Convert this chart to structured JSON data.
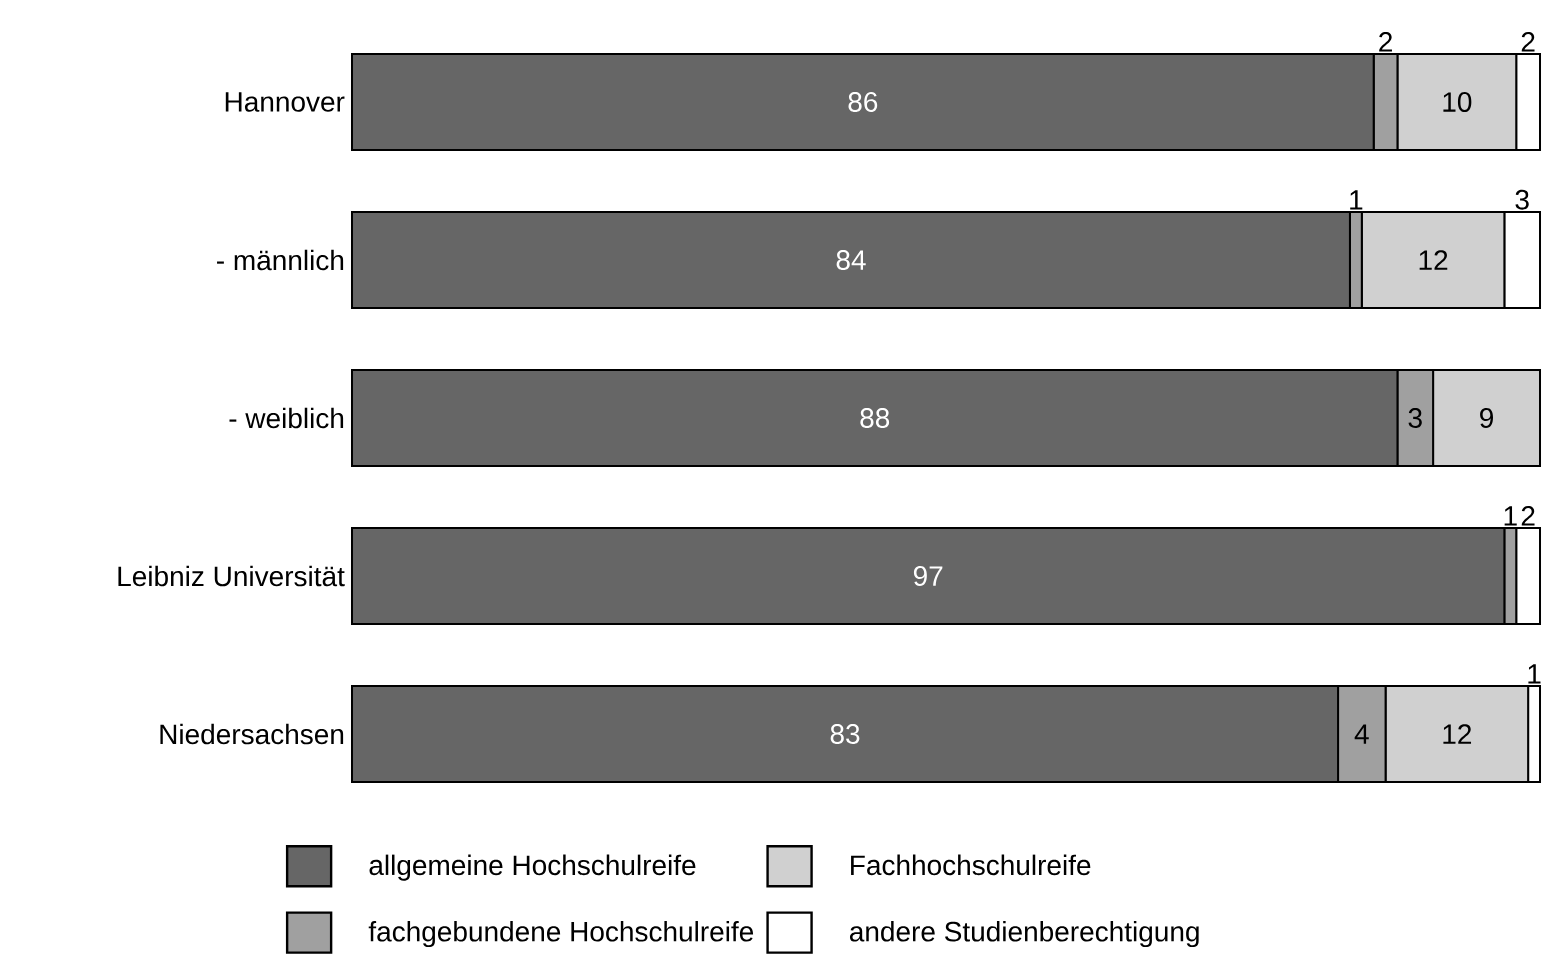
{
  "chart_data": {
    "type": "bar",
    "orientation": "horizontal",
    "stacked": true,
    "legend": "bottom",
    "categories": [
      "Hannover",
      "- männlich",
      "- weiblich",
      "Leibniz Universität",
      "Niedersachsen"
    ],
    "series": [
      {
        "name": "allgemeine Hochschulreife",
        "color": "#666666",
        "values": [
          86,
          84,
          88,
          97,
          83
        ],
        "value_labels": [
          "86",
          "84",
          "88",
          "97",
          "83"
        ]
      },
      {
        "name": "fachgebundene Hochschulreife",
        "color": "#a0a0a0",
        "values": [
          2,
          1,
          3,
          1,
          4
        ],
        "value_labels": [
          "2",
          "1",
          "3",
          "1",
          "4"
        ]
      },
      {
        "name": "Fachhochschulreife",
        "color": "#d0d0d0",
        "values": [
          10,
          12,
          9,
          0,
          12
        ],
        "value_labels": [
          "10",
          "12",
          "9",
          null,
          "12"
        ]
      },
      {
        "name": "andere Studienberechtigung",
        "color": "#ffffff",
        "values": [
          2,
          3,
          0,
          2,
          1
        ],
        "value_labels": [
          "2",
          "3",
          null,
          "2",
          "1"
        ]
      }
    ]
  }
}
